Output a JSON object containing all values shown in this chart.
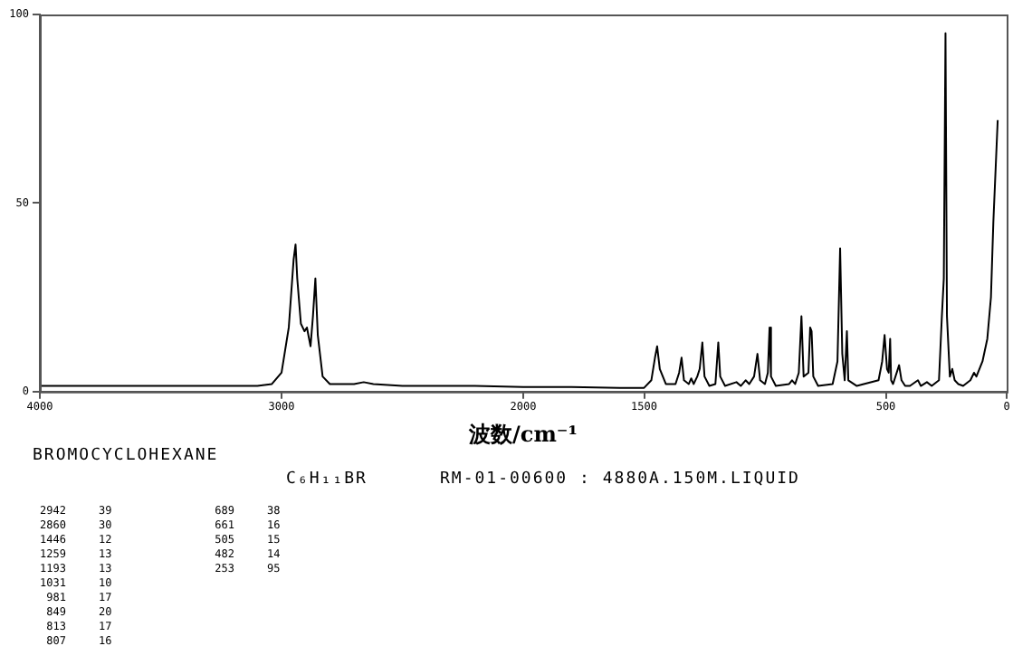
{
  "chart_data": {
    "type": "line",
    "title": "BROMOCYCLOHEXANE",
    "subtitle": "C₆H₁₁BR",
    "xlabel": "波数/cm⁻¹",
    "annotations": [
      "RM-01-00600 : 4880A.150M.LIQUID",
      "2942     39",
      "2860     30",
      "1446     12",
      "1259     13",
      "1193     13",
      "1031     10",
      " 981     17",
      " 849     20",
      " 813     17",
      " 807     16",
      " 689     38",
      " 661     16",
      " 505     15",
      " 482     14",
      " 253     95"
    ],
    "xlim": [
      4000,
      0
    ],
    "xticks": [
      4000,
      3000,
      2000,
      1500,
      500,
      0
    ],
    "ylim": [
      0,
      100
    ],
    "yticks": [
      0,
      50,
      100
    ],
    "grid": false,
    "legend": false,
    "marker": "none",
    "line_style": "solid",
    "series": [
      {
        "color": "#000000",
        "x": [
          4000,
          3500,
          3100,
          3040,
          3000,
          2970,
          2950,
          2942,
          2935,
          2920,
          2905,
          2895,
          2880,
          2870,
          2860,
          2850,
          2830,
          2800,
          2700,
          2660,
          2620,
          2500,
          2200,
          2000,
          1800,
          1600,
          1500,
          1470,
          1455,
          1446,
          1435,
          1410,
          1370,
          1355,
          1345,
          1335,
          1315,
          1305,
          1295,
          1280,
          1270,
          1259,
          1250,
          1230,
          1205,
          1193,
          1185,
          1165,
          1118,
          1100,
          1080,
          1065,
          1045,
          1038,
          1031,
          1020,
          1000,
          988,
          981,
          975,
          955,
          900,
          888,
          875,
          860,
          849,
          840,
          820,
          813,
          807,
          800,
          780,
          720,
          700,
          689,
          680,
          670,
          661,
          655,
          620,
          530,
          515,
          505,
          495,
          488,
          482,
          478,
          470,
          445,
          435,
          420,
          400,
          367,
          355,
          330,
          310,
          280,
          268,
          260,
          253,
          247,
          235,
          225,
          215,
          200,
          180,
          150,
          135,
          125,
          100,
          80,
          65,
          55,
          45,
          37
        ],
        "values": [
          1.5,
          1.5,
          1.5,
          2,
          5,
          17,
          35,
          39,
          30,
          18,
          16,
          17,
          12,
          20,
          30,
          15,
          4,
          2,
          2,
          2.5,
          2,
          1.5,
          1.5,
          1.2,
          1.2,
          1,
          1,
          3,
          9,
          12,
          6,
          2,
          2,
          5,
          9,
          3,
          2,
          3.5,
          2,
          4,
          6,
          13,
          4,
          1.5,
          2,
          13,
          4,
          1.5,
          2.5,
          1.5,
          3,
          2,
          4,
          7,
          10,
          3,
          2,
          5,
          17,
          4,
          1.5,
          2,
          3,
          2,
          5,
          20,
          4,
          5,
          17,
          16,
          4,
          1.5,
          2,
          8,
          38,
          10,
          3,
          16,
          3,
          1.5,
          3,
          8,
          15,
          6,
          5,
          14,
          3,
          2,
          7,
          3,
          1.5,
          1.5,
          3,
          1.5,
          2.5,
          1.5,
          3,
          20,
          30,
          95,
          20,
          4,
          6,
          3,
          2,
          1.5,
          3,
          5,
          4,
          8,
          14,
          25,
          45,
          60,
          72
        ]
      }
    ]
  }
}
